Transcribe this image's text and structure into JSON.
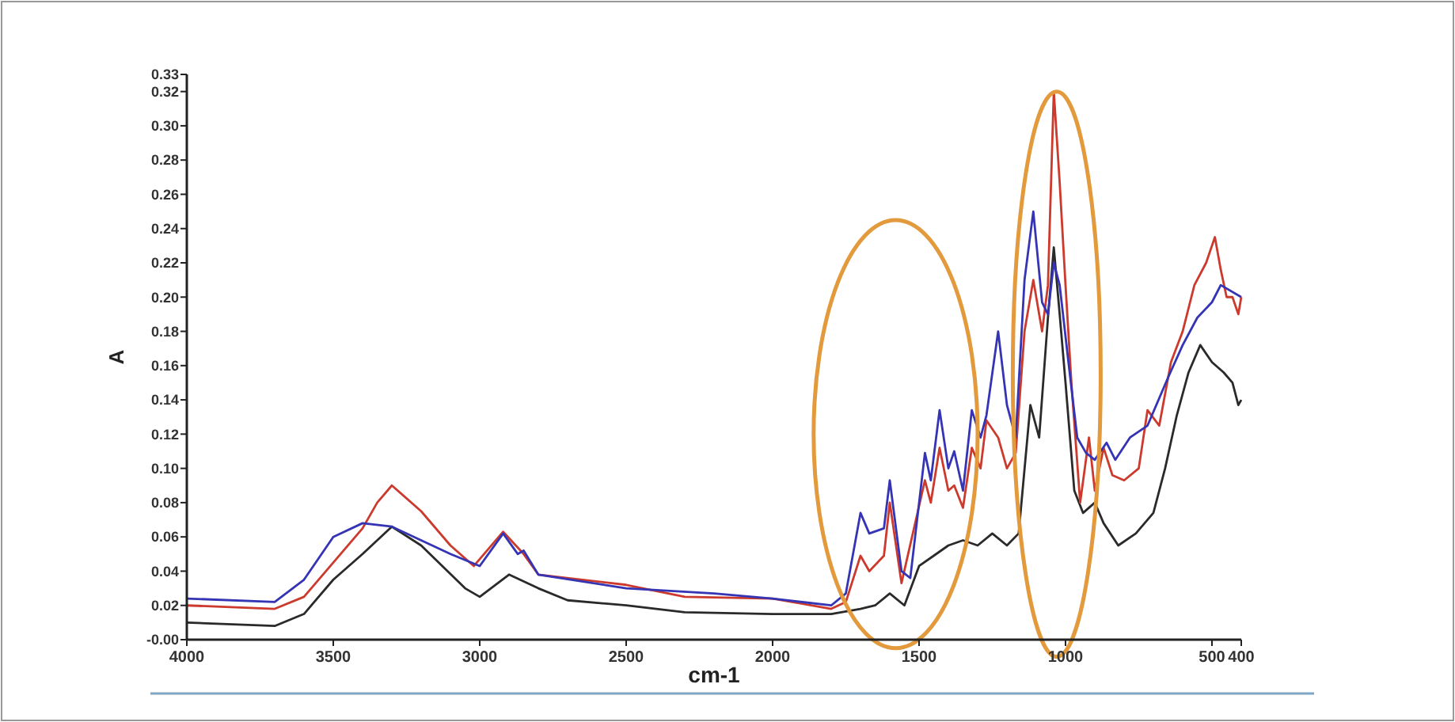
{
  "chart_data": {
    "type": "line",
    "xlabel": "cm-1",
    "ylabel": "A",
    "xlim": [
      4000,
      400
    ],
    "ylim": [
      0,
      0.33
    ],
    "xticks": [
      4000,
      3500,
      3000,
      2500,
      2000,
      1500,
      1000,
      500,
      400
    ],
    "yticks": [
      {
        "value": 0,
        "label": "-0.00"
      },
      0.02,
      0.04,
      0.06,
      0.08,
      {
        "value": 0.1,
        "label": "0.10"
      },
      0.12,
      0.14,
      0.16,
      0.18,
      {
        "value": 0.2,
        "label": "0.20"
      },
      0.22,
      0.24,
      0.26,
      0.28,
      {
        "value": 0.3,
        "label": "0.30"
      },
      0.32,
      0.33
    ],
    "grid": false,
    "marker": "none",
    "line_style": "solid",
    "series": [
      {
        "color": "#2a2a2a",
        "x": [
          4000,
          3700,
          3600,
          3500,
          3400,
          3300,
          3200,
          3050,
          3000,
          2900,
          2800,
          2700,
          2500,
          2300,
          2000,
          1800,
          1700,
          1650,
          1600,
          1550,
          1500,
          1450,
          1400,
          1350,
          1300,
          1250,
          1200,
          1160,
          1120,
          1090,
          1060,
          1040,
          1020,
          1000,
          970,
          940,
          900,
          870,
          820,
          760,
          700,
          660,
          620,
          580,
          540,
          500,
          460,
          430,
          410,
          400
        ],
        "values": [
          0.01,
          0.008,
          0.015,
          0.035,
          0.05,
          0.066,
          0.055,
          0.03,
          0.025,
          0.038,
          0.03,
          0.023,
          0.02,
          0.016,
          0.015,
          0.015,
          0.018,
          0.02,
          0.027,
          0.02,
          0.043,
          0.049,
          0.055,
          0.058,
          0.055,
          0.062,
          0.055,
          0.062,
          0.137,
          0.118,
          0.188,
          0.229,
          0.19,
          0.15,
          0.087,
          0.074,
          0.08,
          0.068,
          0.055,
          0.062,
          0.074,
          0.1,
          0.131,
          0.156,
          0.172,
          0.162,
          0.156,
          0.15,
          0.137,
          0.14
        ]
      },
      {
        "color": "#cc3a2e",
        "x": [
          4000,
          3700,
          3600,
          3500,
          3400,
          3350,
          3300,
          3200,
          3100,
          3020,
          2920,
          2850,
          2800,
          2500,
          2300,
          2000,
          1800,
          1750,
          1700,
          1670,
          1620,
          1600,
          1560,
          1480,
          1460,
          1430,
          1400,
          1380,
          1350,
          1320,
          1290,
          1270,
          1230,
          1200,
          1170,
          1140,
          1110,
          1080,
          1060,
          1040,
          1020,
          1000,
          980,
          950,
          920,
          900,
          870,
          840,
          800,
          750,
          720,
          680,
          640,
          600,
          560,
          520,
          490,
          470,
          450,
          430,
          410,
          400
        ],
        "values": [
          0.02,
          0.018,
          0.025,
          0.045,
          0.065,
          0.08,
          0.09,
          0.075,
          0.055,
          0.043,
          0.063,
          0.05,
          0.038,
          0.032,
          0.025,
          0.024,
          0.018,
          0.022,
          0.049,
          0.04,
          0.049,
          0.08,
          0.033,
          0.093,
          0.08,
          0.112,
          0.087,
          0.09,
          0.077,
          0.112,
          0.1,
          0.128,
          0.118,
          0.1,
          0.109,
          0.18,
          0.21,
          0.18,
          0.207,
          0.32,
          0.267,
          0.207,
          0.15,
          0.08,
          0.118,
          0.087,
          0.112,
          0.096,
          0.093,
          0.1,
          0.134,
          0.125,
          0.162,
          0.18,
          0.207,
          0.22,
          0.235,
          0.216,
          0.2,
          0.2,
          0.19,
          0.2
        ]
      },
      {
        "color": "#3434b4",
        "x": [
          4000,
          3700,
          3600,
          3500,
          3400,
          3300,
          3200,
          3100,
          3000,
          2920,
          2870,
          2850,
          2800,
          2500,
          2200,
          2000,
          1800,
          1750,
          1700,
          1670,
          1620,
          1600,
          1560,
          1530,
          1480,
          1460,
          1430,
          1400,
          1380,
          1350,
          1320,
          1290,
          1270,
          1230,
          1200,
          1170,
          1140,
          1110,
          1080,
          1060,
          1040,
          1020,
          990,
          960,
          930,
          900,
          860,
          830,
          780,
          720,
          650,
          600,
          550,
          500,
          470,
          400
        ],
        "values": [
          0.024,
          0.022,
          0.035,
          0.06,
          0.068,
          0.066,
          0.058,
          0.05,
          0.043,
          0.062,
          0.05,
          0.052,
          0.038,
          0.03,
          0.027,
          0.024,
          0.02,
          0.027,
          0.074,
          0.062,
          0.065,
          0.093,
          0.04,
          0.036,
          0.109,
          0.093,
          0.134,
          0.1,
          0.11,
          0.087,
          0.134,
          0.118,
          0.131,
          0.18,
          0.137,
          0.118,
          0.21,
          0.25,
          0.197,
          0.19,
          0.22,
          0.207,
          0.162,
          0.118,
          0.109,
          0.105,
          0.115,
          0.105,
          0.118,
          0.125,
          0.153,
          0.172,
          0.188,
          0.197,
          0.207,
          0.2
        ]
      }
    ]
  }
}
